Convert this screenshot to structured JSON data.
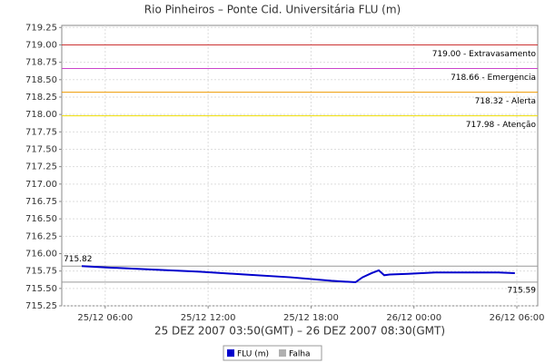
{
  "chart_data": {
    "type": "line",
    "title": "Rio Pinheiros – Ponte Cid. Universitária FLU (m)",
    "x_label": "25 DEZ 2007 03:50(GMT) – 26 DEZ 2007 08:30(GMT)",
    "x": [
      "2007-12-25T04:38",
      "2007-12-25T06:13",
      "2007-12-25T08:52",
      "2007-12-25T11:30",
      "2007-12-25T14:09",
      "2007-12-25T16:48",
      "2007-12-25T19:11",
      "2007-12-25T20:30",
      "2007-12-25T20:36",
      "2007-12-25T21:00",
      "2007-12-25T21:32",
      "2007-12-25T21:57",
      "2007-12-25T22:16",
      "2007-12-25T22:35",
      "2007-12-25T23:39",
      "2007-12-26T01:14",
      "2007-12-26T03:21",
      "2007-12-26T04:56",
      "2007-12-26T05:53"
    ],
    "series": [
      {
        "name": "FLU (m)",
        "color": "#0000cc",
        "values": [
          715.82,
          715.8,
          715.77,
          715.74,
          715.7,
          715.66,
          715.61,
          715.59,
          715.59,
          715.66,
          715.72,
          715.76,
          715.69,
          715.7,
          715.71,
          715.73,
          715.73,
          715.73,
          715.72
        ]
      },
      {
        "name": "Falha",
        "color": "#b0b0b0",
        "values": [
          null,
          null,
          null,
          null,
          null,
          null,
          null,
          null,
          null,
          null,
          null,
          null,
          null,
          null,
          null,
          null,
          null,
          null,
          null
        ]
      }
    ],
    "xlim": [
      "2007-12-25T03:28",
      "2007-12-26T07:13"
    ],
    "xticks": [
      {
        "value": "2007-12-25T06:00",
        "label": "25/12 06:00"
      },
      {
        "value": "2007-12-25T12:00",
        "label": "25/12 12:00"
      },
      {
        "value": "2007-12-25T18:00",
        "label": "25/12 18:00"
      },
      {
        "value": "2007-12-26T00:00",
        "label": "26/12 00:00"
      },
      {
        "value": "2007-12-26T06:00",
        "label": "26/12 06:00"
      }
    ],
    "ylim": [
      715.25,
      719.28
    ],
    "yticks": [
      715.25,
      {
        "value": 715.5,
        "label": "715.50"
      },
      715.75,
      {
        "value": 716,
        "label": "716.00"
      },
      716.25,
      {
        "value": 716.5,
        "label": "716.50"
      },
      716.75,
      {
        "value": 717,
        "label": "717.00"
      },
      717.25,
      {
        "value": 717.5,
        "label": "717.50"
      },
      717.75,
      {
        "value": 718,
        "label": "718.00"
      },
      718.25,
      {
        "value": 718.5,
        "label": "718.50"
      },
      718.75,
      {
        "value": 719,
        "label": "719.00"
      },
      719.25
    ],
    "grid": true,
    "thresholds": [
      {
        "value": 719,
        "label": "719.00 - Extravasamento",
        "color": "#cc3333"
      },
      {
        "value": 718.66,
        "label": "718.66 - Emergencia",
        "color": "#cc44cc"
      },
      {
        "value": 718.32,
        "label": "718.32 - Alerta",
        "color": "#ee9900"
      },
      {
        "value": 717.98,
        "label": "717.98 - Atenção",
        "color": "#eedd00"
      }
    ],
    "extremes": [
      {
        "value": 715.82,
        "position": "left"
      },
      {
        "value": 715.59,
        "position": "right"
      }
    ]
  }
}
